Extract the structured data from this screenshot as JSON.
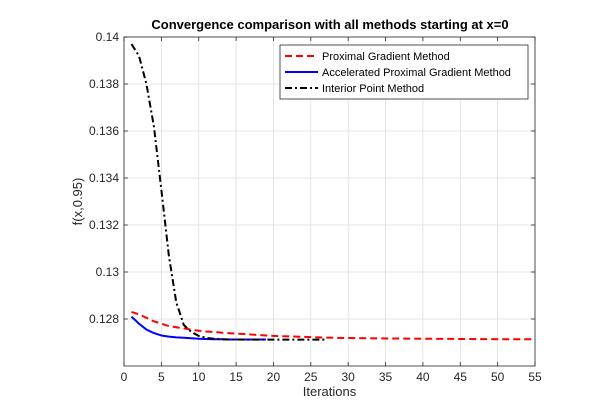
{
  "chart_data": {
    "type": "line",
    "title": "Convergence comparison with all methods starting at x=0",
    "xlabel": "Iterations",
    "ylabel": "f(x,0.95)",
    "xlim": [
      0,
      55
    ],
    "ylim": [
      0.126,
      0.14
    ],
    "x_ticks": [
      0,
      5,
      10,
      15,
      20,
      25,
      30,
      35,
      40,
      45,
      50,
      55
    ],
    "y_ticks": [
      0.128,
      0.13,
      0.132,
      0.134,
      0.136,
      0.138,
      0.14
    ],
    "x_tick_labels": [
      "0",
      "5",
      "10",
      "15",
      "20",
      "25",
      "30",
      "35",
      "40",
      "45",
      "50",
      "55"
    ],
    "y_tick_labels": [
      "0.128",
      "0.13",
      "0.132",
      "0.134",
      "0.136",
      "0.138",
      "0.14"
    ],
    "grid": true,
    "legend_position": "top-right",
    "series": [
      {
        "name": "Proximal Gradient Method",
        "color": "#ff0000",
        "line_style": "dashed",
        "x": [
          1,
          2,
          3,
          4,
          5,
          6,
          7,
          8,
          9,
          10,
          11,
          12,
          13,
          14,
          15,
          16,
          17,
          18,
          19,
          20,
          22,
          24,
          26,
          28,
          30,
          33,
          36,
          40,
          45,
          50,
          55
        ],
        "y": [
          0.1283,
          0.1282,
          0.12805,
          0.1279,
          0.1278,
          0.1277,
          0.12765,
          0.1276,
          0.12755,
          0.1275,
          0.12747,
          0.12745,
          0.12742,
          0.1274,
          0.12738,
          0.12736,
          0.12734,
          0.12732,
          0.1273,
          0.12728,
          0.12726,
          0.12724,
          0.12722,
          0.1272,
          0.12719,
          0.12718,
          0.12717,
          0.12716,
          0.12715,
          0.12714,
          0.12714
        ]
      },
      {
        "name": "Accelerated Proximal Gradient Method",
        "color": "#0000ff",
        "line_style": "solid",
        "x": [
          1,
          2,
          3,
          4,
          5,
          6,
          7,
          8,
          9,
          10,
          11,
          12,
          13,
          14,
          15,
          16,
          17,
          18,
          19
        ],
        "y": [
          0.1281,
          0.1278,
          0.12755,
          0.1274,
          0.1273,
          0.12725,
          0.12722,
          0.1272,
          0.12718,
          0.12716,
          0.12715,
          0.12714,
          0.12714,
          0.12713,
          0.12713,
          0.12713,
          0.12713,
          0.12713,
          0.12713
        ]
      },
      {
        "name": "Interior Point Method",
        "color": "#000000",
        "line_style": "dash-dot",
        "x": [
          1,
          2,
          3,
          4,
          5,
          6,
          7,
          8,
          9,
          10,
          11,
          12,
          13,
          14,
          15,
          17,
          19,
          21,
          23,
          25,
          27
        ],
        "y": [
          0.1397,
          0.1392,
          0.138,
          0.1362,
          0.1335,
          0.1307,
          0.1287,
          0.12775,
          0.12745,
          0.12728,
          0.1272,
          0.12716,
          0.12714,
          0.12713,
          0.12713,
          0.12712,
          0.12712,
          0.12712,
          0.12712,
          0.12712,
          0.12712
        ]
      }
    ]
  }
}
